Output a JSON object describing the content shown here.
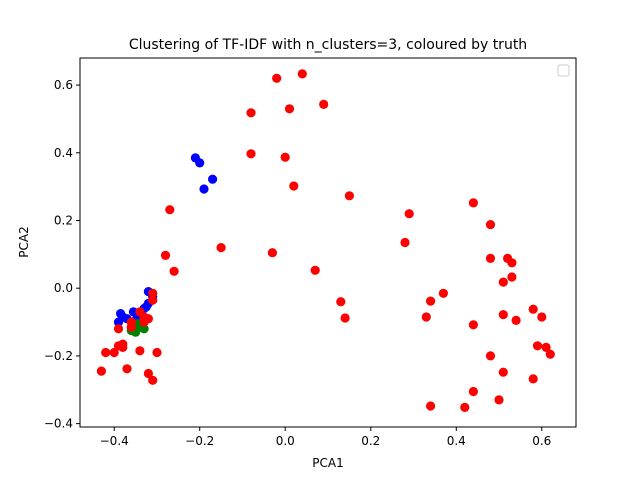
{
  "chart_data": {
    "type": "scatter",
    "title": "Clustering of TF-IDF with n_clusters=3, coloured by truth",
    "xlabel": "PCA1",
    "ylabel": "PCA2",
    "xlim": [
      -0.48,
      0.68
    ],
    "ylim": [
      -0.41,
      0.68
    ],
    "xticks": [
      "−0.4",
      "−0.2",
      "0.0",
      "0.2",
      "0.4",
      "0.6"
    ],
    "xtick_values": [
      -0.4,
      -0.2,
      0.0,
      0.2,
      0.4,
      0.6
    ],
    "yticks": [
      "−0.4",
      "−0.2",
      "0.0",
      "0.2",
      "0.4",
      "0.6"
    ],
    "ytick_values": [
      -0.4,
      -0.2,
      0.0,
      0.2,
      0.4,
      0.6
    ],
    "grid": false,
    "legend": "top-right",
    "legend_entries": [],
    "series": [
      {
        "color": "#0000ff",
        "points": [
          [
            -0.21,
            0.385
          ],
          [
            -0.2,
            0.37
          ],
          [
            -0.17,
            0.322
          ],
          [
            -0.19,
            0.293
          ],
          [
            -0.32,
            -0.01
          ],
          [
            -0.31,
            -0.025
          ],
          [
            -0.32,
            -0.045
          ],
          [
            -0.33,
            -0.06
          ],
          [
            -0.34,
            -0.075
          ],
          [
            -0.355,
            -0.07
          ],
          [
            -0.385,
            -0.075
          ],
          [
            -0.38,
            -0.085
          ],
          [
            -0.37,
            -0.09
          ],
          [
            -0.39,
            -0.1
          ],
          [
            -0.35,
            -0.095
          ],
          [
            -0.325,
            -0.055
          ]
        ]
      },
      {
        "color": "#008000",
        "points": [
          [
            -0.35,
            -0.11
          ],
          [
            -0.34,
            -0.115
          ],
          [
            -0.33,
            -0.12
          ],
          [
            -0.36,
            -0.125
          ],
          [
            -0.35,
            -0.13
          ],
          [
            -0.345,
            -0.105
          ]
        ]
      },
      {
        "color": "#ff0000",
        "points": [
          [
            -0.02,
            0.62
          ],
          [
            0.04,
            0.633
          ],
          [
            0.01,
            0.53
          ],
          [
            0.09,
            0.543
          ],
          [
            -0.08,
            0.518
          ],
          [
            -0.08,
            0.397
          ],
          [
            0.0,
            0.387
          ],
          [
            0.02,
            0.302
          ],
          [
            0.15,
            0.273
          ],
          [
            -0.27,
            0.232
          ],
          [
            -0.28,
            0.097
          ],
          [
            -0.26,
            0.05
          ],
          [
            -0.15,
            0.12
          ],
          [
            -0.03,
            0.105
          ],
          [
            0.07,
            0.053
          ],
          [
            0.13,
            -0.04
          ],
          [
            0.14,
            -0.088
          ],
          [
            0.29,
            0.22
          ],
          [
            0.28,
            0.135
          ],
          [
            0.44,
            0.252
          ],
          [
            0.48,
            0.188
          ],
          [
            0.48,
            0.088
          ],
          [
            0.52,
            0.088
          ],
          [
            0.53,
            0.075
          ],
          [
            0.51,
            0.018
          ],
          [
            0.53,
            0.033
          ],
          [
            0.37,
            -0.015
          ],
          [
            0.34,
            -0.038
          ],
          [
            0.33,
            -0.085
          ],
          [
            0.44,
            -0.108
          ],
          [
            0.51,
            -0.078
          ],
          [
            0.54,
            -0.095
          ],
          [
            0.58,
            -0.062
          ],
          [
            0.6,
            -0.085
          ],
          [
            0.59,
            -0.17
          ],
          [
            0.61,
            -0.175
          ],
          [
            0.62,
            -0.195
          ],
          [
            0.48,
            -0.2
          ],
          [
            0.51,
            -0.248
          ],
          [
            0.58,
            -0.268
          ],
          [
            0.44,
            -0.305
          ],
          [
            0.5,
            -0.33
          ],
          [
            0.34,
            -0.348
          ],
          [
            0.42,
            -0.352
          ],
          [
            -0.31,
            -0.015
          ],
          [
            -0.31,
            -0.035
          ],
          [
            -0.32,
            -0.09
          ],
          [
            -0.33,
            -0.1
          ],
          [
            -0.36,
            -0.1
          ],
          [
            -0.36,
            -0.115
          ],
          [
            -0.38,
            -0.165
          ],
          [
            -0.38,
            -0.175
          ],
          [
            -0.39,
            -0.17
          ],
          [
            -0.39,
            -0.12
          ],
          [
            -0.42,
            -0.19
          ],
          [
            -0.4,
            -0.19
          ],
          [
            -0.34,
            -0.185
          ],
          [
            -0.3,
            -0.19
          ],
          [
            -0.37,
            -0.238
          ],
          [
            -0.43,
            -0.245
          ],
          [
            -0.32,
            -0.252
          ],
          [
            -0.31,
            -0.272
          ],
          [
            -0.34,
            -0.07
          ],
          [
            -0.33,
            -0.085
          ]
        ]
      }
    ]
  }
}
